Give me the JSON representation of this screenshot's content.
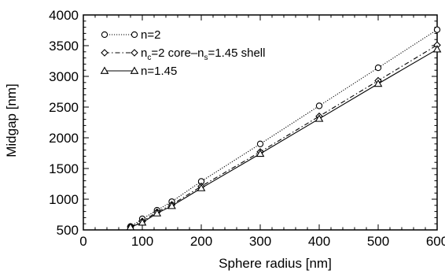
{
  "chart_data": {
    "type": "line",
    "title": "",
    "xlabel": "Sphere radius [nm]",
    "ylabel": "Midgap [nm]",
    "xlim": [
      0,
      600
    ],
    "ylim": [
      500,
      4000
    ],
    "xticks": [
      0,
      100,
      200,
      300,
      400,
      500,
      600
    ],
    "yticks": [
      500,
      1000,
      1500,
      2000,
      2500,
      3000,
      3500,
      4000
    ],
    "grid": false,
    "legend_position": "top-left",
    "series": [
      {
        "name": "n=2",
        "marker": "circle",
        "line_style": "dotted",
        "x": [
          80,
          100,
          125,
          150,
          200,
          300,
          400,
          500,
          600
        ],
        "y": [
          555,
          680,
          820,
          960,
          1290,
          1900,
          2520,
          3140,
          3760
        ]
      },
      {
        "name": "n_c=2 core-n_s=1.45 shell",
        "legend_parts": [
          {
            "text": "n",
            "sub": false
          },
          {
            "text": "c",
            "sub": true
          },
          {
            "text": "=2 core–n",
            "sub": false
          },
          {
            "text": "s",
            "sub": true
          },
          {
            "text": "=1.45 shell",
            "sub": false
          }
        ],
        "marker": "diamond",
        "line_style": "dashdot",
        "x": [
          80,
          100,
          125,
          150,
          200,
          300,
          400,
          500,
          600
        ],
        "y": [
          550,
          640,
          790,
          910,
          1210,
          1770,
          2350,
          2930,
          3510
        ]
      },
      {
        "name": "n=1.45",
        "marker": "triangle",
        "line_style": "solid",
        "x": [
          80,
          100,
          125,
          150,
          200,
          300,
          400,
          500,
          600
        ],
        "y": [
          545,
          620,
          770,
          890,
          1180,
          1740,
          2310,
          2880,
          3440
        ]
      }
    ]
  }
}
